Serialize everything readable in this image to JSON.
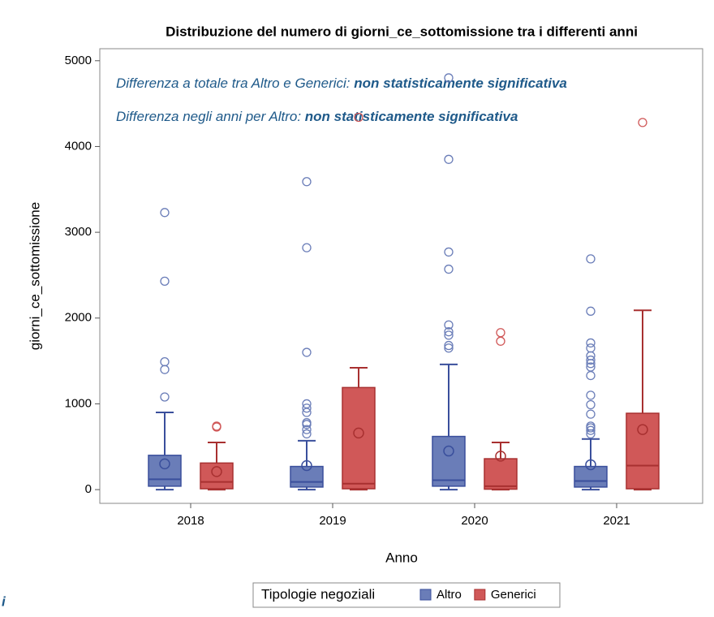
{
  "chart_data": {
    "type": "box",
    "title": "Distribuzione del numero di giorni_ce_sottomissione tra i differenti anni",
    "xlabel": "Anno",
    "ylabel": "giorni_ce_sottomissione",
    "annotations": [
      {
        "text": "Differenza a totale tra Altro e Generici: ",
        "emphasis": "non statisticamente significativa"
      },
      {
        "text": "Differenza negli anni per Altro: ",
        "emphasis": "non statisticamente significativa"
      }
    ],
    "side_note": "i",
    "legend_title": "Tipologie negoziali",
    "categories": [
      "2018",
      "2019",
      "2020",
      "2021"
    ],
    "ylim": [
      -160,
      5140
    ],
    "yticks": [
      0,
      1000,
      2000,
      3000,
      4000,
      5000
    ],
    "series": [
      {
        "name": "Altro",
        "color": "#6a7db8",
        "edge_color": "#3a4f9c",
        "boxes": [
          {
            "min": 0,
            "q1": 40,
            "median": 120,
            "q3": 400,
            "max": 900,
            "mean": 300,
            "outliers": [
              1080,
              1400,
              1490,
              2430,
              3230
            ]
          },
          {
            "min": 0,
            "q1": 30,
            "median": 90,
            "q3": 270,
            "max": 570,
            "mean": 280,
            "outliers": [
              650,
              700,
              760,
              780,
              900,
              950,
              1000,
              1600,
              2820,
              3590
            ]
          },
          {
            "min": 0,
            "q1": 40,
            "median": 110,
            "q3": 620,
            "max": 1460,
            "mean": 450,
            "outliers": [
              1650,
              1680,
              1800,
              1840,
              1920,
              2570,
              2770,
              3850,
              4800
            ]
          },
          {
            "min": 0,
            "q1": 30,
            "median": 100,
            "q3": 270,
            "max": 590,
            "mean": 290,
            "outliers": [
              650,
              690,
              720,
              740,
              880,
              990,
              1100,
              1330,
              1430,
              1470,
              1510,
              1560,
              1650,
              1710,
              2080,
              2690
            ]
          }
        ]
      },
      {
        "name": "Generici",
        "color": "#d05858",
        "edge_color": "#a83030",
        "boxes": [
          {
            "min": 0,
            "q1": 10,
            "median": 90,
            "q3": 310,
            "max": 550,
            "mean": 210,
            "outliers": [
              730,
              740
            ]
          },
          {
            "min": 0,
            "q1": 10,
            "median": 70,
            "q3": 1190,
            "max": 1420,
            "mean": 660,
            "outliers": [
              4340
            ]
          },
          {
            "min": 0,
            "q1": 5,
            "median": 40,
            "q3": 360,
            "max": 550,
            "mean": 390,
            "outliers": [
              1730,
              1830
            ]
          },
          {
            "min": 0,
            "q1": 10,
            "median": 280,
            "q3": 890,
            "max": 2090,
            "mean": 700,
            "outliers": [
              4280
            ]
          }
        ]
      }
    ]
  }
}
